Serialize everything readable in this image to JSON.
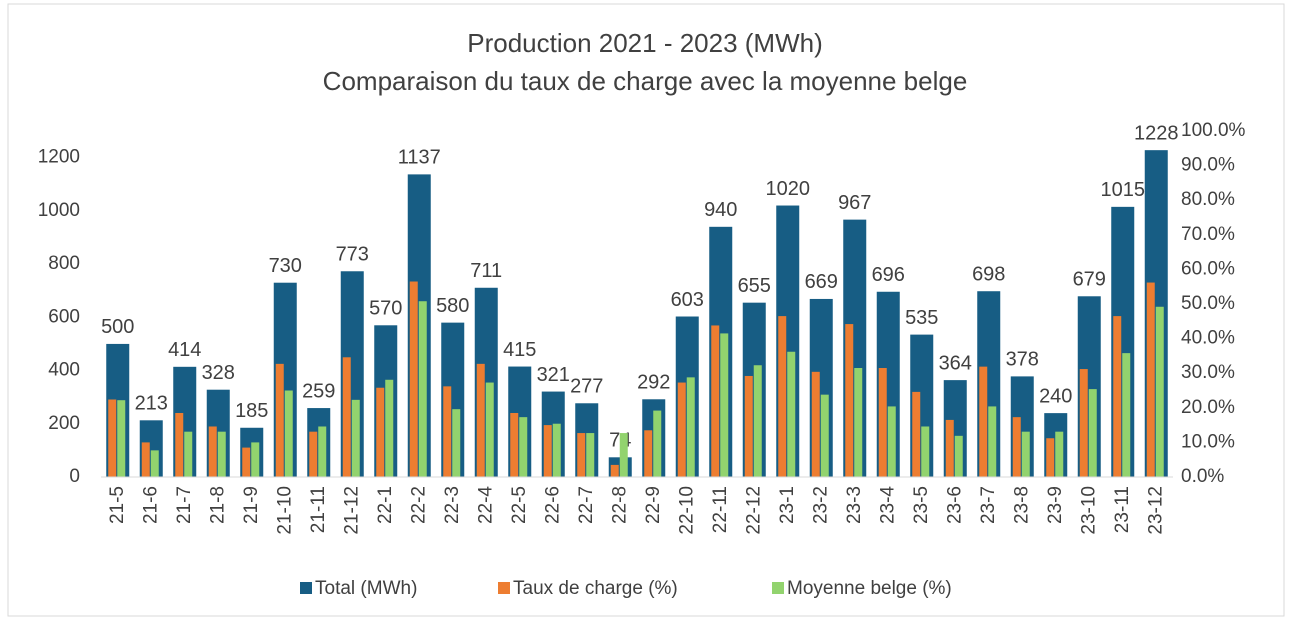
{
  "chart_data": {
    "type": "bar",
    "title": "Production 2021 - 2023 (MWh)",
    "subtitle": "Comparaison du taux de charge avec la moyenne belge",
    "categories": [
      "21-5",
      "21-6",
      "21-7",
      "21-8",
      "21-9",
      "21-10",
      "21-11",
      "21-12",
      "22-1",
      "22-2",
      "22-3",
      "22-4",
      "22-5",
      "22-6",
      "22-7",
      "22-8",
      "22-9",
      "22-10",
      "22-11",
      "22-12",
      "23-1",
      "23-2",
      "23-3",
      "23-4",
      "23-5",
      "23-6",
      "23-7",
      "23-8",
      "23-9",
      "23-10",
      "23-11",
      "23-12"
    ],
    "series": [
      {
        "name": "Total (MWh)",
        "color": "#175d84",
        "values": [
          500,
          213,
          414,
          328,
          185,
          730,
          259,
          773,
          570,
          1137,
          580,
          711,
          415,
          321,
          277,
          74,
          292,
          603,
          940,
          655,
          1020,
          669,
          967,
          696,
          535,
          364,
          698,
          378,
          240,
          679,
          1015,
          1228
        ]
      },
      {
        "name": "Taux de charge (%)",
        "color": "#ed7d31",
        "axis": "y2",
        "values": [
          22.4,
          10.0,
          18.5,
          14.6,
          8.5,
          32.7,
          13.1,
          34.6,
          25.8,
          56.5,
          26.2,
          32.7,
          18.5,
          15.0,
          12.7,
          3.5,
          13.5,
          27.3,
          43.8,
          29.2,
          46.5,
          30.4,
          44.2,
          31.5,
          24.6,
          16.5,
          31.9,
          17.3,
          11.2,
          31.2,
          46.5,
          56.2
        ]
      },
      {
        "name": "Moyenne belge (%)",
        "color": "#92d36e",
        "axis": "y2",
        "values": [
          22.2,
          7.7,
          13.1,
          13.1,
          10.0,
          25.0,
          14.6,
          22.3,
          28.1,
          50.8,
          19.6,
          27.3,
          17.3,
          15.4,
          12.7,
          12.7,
          19.2,
          28.8,
          41.5,
          32.3,
          36.2,
          23.8,
          31.5,
          20.4,
          14.6,
          11.9,
          20.4,
          13.1,
          13.1,
          25.4,
          35.8,
          49.2
        ]
      }
    ],
    "ylim": [
      0,
      1300
    ],
    "yticks": [
      0,
      200,
      400,
      600,
      800,
      1000,
      1200
    ],
    "y2lim": [
      0,
      100
    ],
    "y2ticks": [
      {
        "value": 0,
        "label": "0.0%"
      },
      {
        "value": 10,
        "label": "10.0%"
      },
      {
        "value": 20,
        "label": "20.0%"
      },
      {
        "value": 30,
        "label": "30.0%"
      },
      {
        "value": 40,
        "label": "40.0%"
      },
      {
        "value": 50,
        "label": "50.0%"
      },
      {
        "value": 60,
        "label": "60.0%"
      },
      {
        "value": 70,
        "label": "70.0%"
      },
      {
        "value": 80,
        "label": "80.0%"
      },
      {
        "value": 90,
        "label": "90.0%"
      },
      {
        "value": 100,
        "label": "100.0%"
      }
    ],
    "legend": "bottom"
  }
}
